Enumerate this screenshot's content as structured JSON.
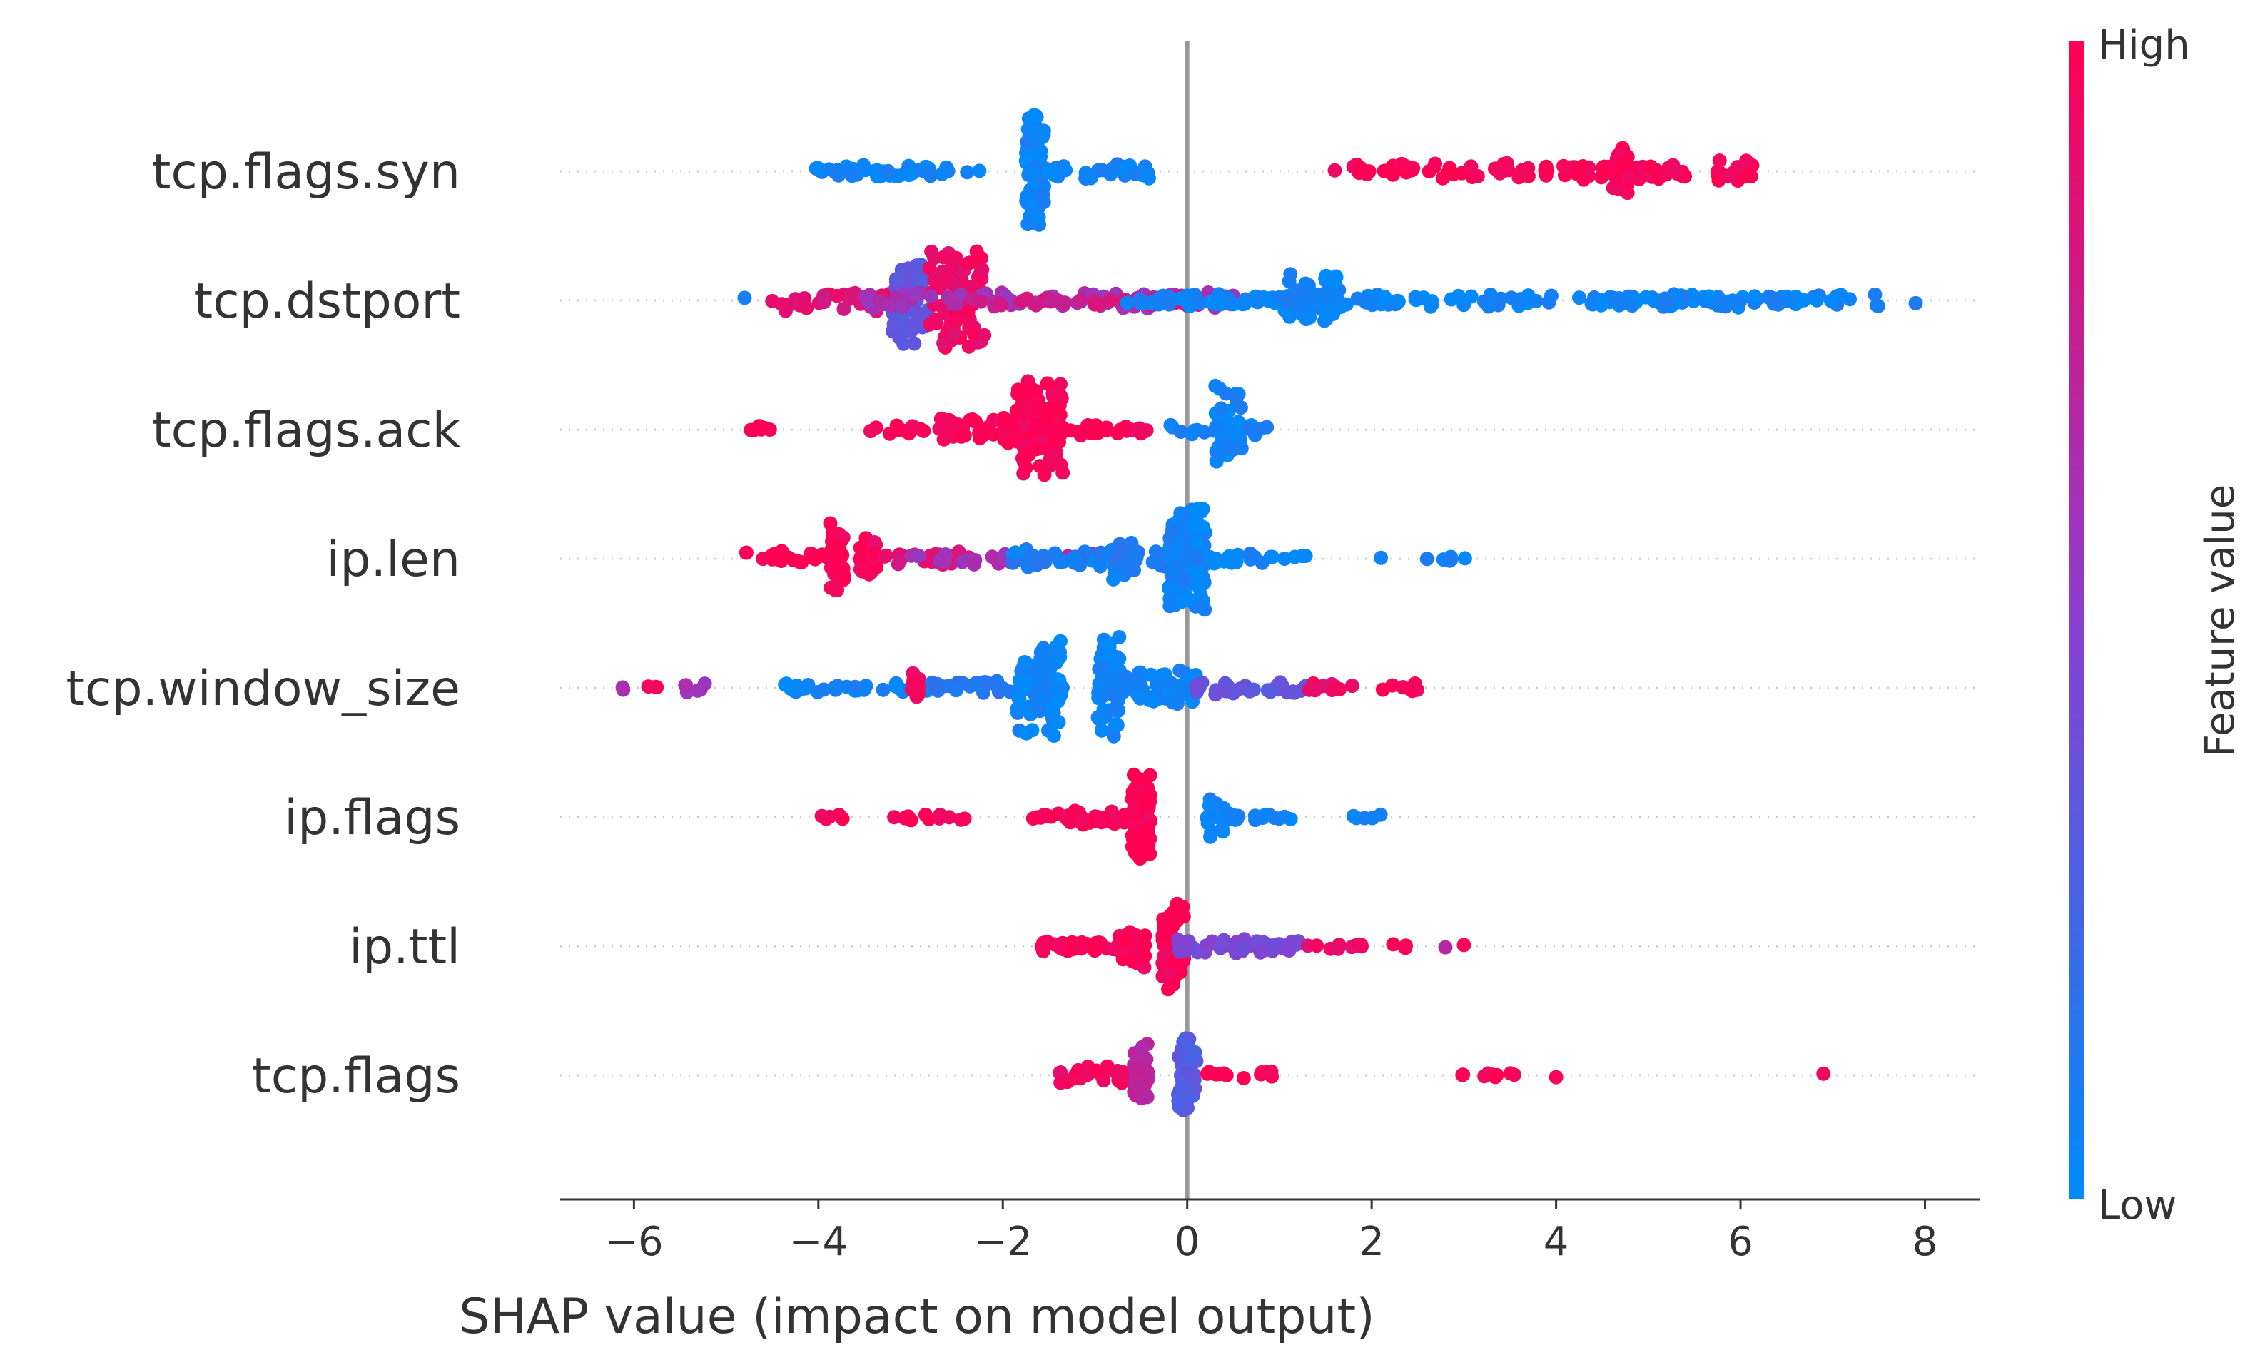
{
  "chart_data": {
    "type": "scatter",
    "subtype": "shap-beeswarm",
    "title": "",
    "xlabel": "SHAP value (impact on model output)",
    "ylabel": "",
    "xlim": [
      -6.8,
      8.6
    ],
    "xticks": [
      -6,
      -4,
      -2,
      0,
      2,
      4,
      6,
      8
    ],
    "xtick_labels": [
      "−6",
      "−4",
      "−2",
      "0",
      "2",
      "4",
      "6",
      "8"
    ],
    "colorbar": {
      "label": "Feature value",
      "high_label": "High",
      "low_label": "Low",
      "low_color": "#008bfb",
      "mid_color": "#8a3fd0",
      "high_color": "#ff0052"
    },
    "features": [
      {
        "name": "tcp.flags.syn",
        "clusters": [
          {
            "x": -3.8,
            "w": 0.05,
            "n": 2,
            "h": 0.08,
            "f": 0.05
          },
          {
            "x": -3.2,
            "w": 1.0,
            "n": 40,
            "h": 0.12,
            "f": 0.05
          },
          {
            "x": -1.65,
            "w": 0.1,
            "n": 90,
            "h": 0.95,
            "f": 0.05
          },
          {
            "x": -1.1,
            "w": 0.7,
            "n": 35,
            "h": 0.12,
            "f": 0.05
          },
          {
            "x": 1.6,
            "w": 0.0,
            "n": 1,
            "h": 0.05,
            "f": 0.98
          },
          {
            "x": 3.4,
            "w": 1.6,
            "n": 60,
            "h": 0.14,
            "f": 0.98
          },
          {
            "x": 4.7,
            "w": 0.08,
            "n": 40,
            "h": 0.45,
            "f": 0.98
          },
          {
            "x": 5.0,
            "w": 0.5,
            "n": 25,
            "h": 0.15,
            "f": 0.98
          },
          {
            "x": 5.95,
            "w": 0.2,
            "n": 20,
            "h": 0.2,
            "f": 0.98
          }
        ]
      },
      {
        "name": "tcp.dstport",
        "clusters": [
          {
            "x": -4.8,
            "w": 0.0,
            "n": 1,
            "h": 0.05,
            "f": 0.15
          },
          {
            "x": -4.5,
            "w": 0.0,
            "n": 1,
            "h": 0.05,
            "f": 0.95
          },
          {
            "x": -3.7,
            "w": 0.7,
            "n": 30,
            "h": 0.2,
            "f": 0.85
          },
          {
            "x": -3.0,
            "w": 0.2,
            "n": 70,
            "h": 0.75,
            "f": 0.35
          },
          {
            "x": -2.5,
            "w": 0.3,
            "n": 80,
            "h": 0.85,
            "f": 0.92
          },
          {
            "x": -1.5,
            "w": 2.0,
            "n": 90,
            "h": 0.14,
            "f": 0.6
          },
          {
            "x": -1.0,
            "w": 1.5,
            "n": 40,
            "h": 0.1,
            "f": 0.8
          },
          {
            "x": 0.8,
            "w": 1.6,
            "n": 80,
            "h": 0.12,
            "f": 0.05
          },
          {
            "x": 1.35,
            "w": 0.3,
            "n": 60,
            "h": 0.45,
            "f": 0.05
          },
          {
            "x": 2.8,
            "w": 2.6,
            "n": 90,
            "h": 0.12,
            "f": 0.05
          },
          {
            "x": 6.3,
            "w": 1.2,
            "n": 60,
            "h": 0.12,
            "f": 0.05
          },
          {
            "x": 7.9,
            "w": 0.0,
            "n": 1,
            "h": 0.05,
            "f": 0.05
          }
        ]
      },
      {
        "name": "tcp.flags.ack",
        "clusters": [
          {
            "x": -4.6,
            "w": 0.15,
            "n": 6,
            "h": 0.08,
            "f": 0.98
          },
          {
            "x": -3.4,
            "w": 0.05,
            "n": 2,
            "h": 0.05,
            "f": 0.98
          },
          {
            "x": -2.9,
            "w": 0.4,
            "n": 12,
            "h": 0.1,
            "f": 0.98
          },
          {
            "x": -2.1,
            "w": 0.6,
            "n": 60,
            "h": 0.25,
            "f": 0.98
          },
          {
            "x": -1.6,
            "w": 0.25,
            "n": 110,
            "h": 0.85,
            "f": 0.98
          },
          {
            "x": -0.9,
            "w": 0.5,
            "n": 30,
            "h": 0.1,
            "f": 0.98
          },
          {
            "x": 0.15,
            "w": 0.4,
            "n": 10,
            "h": 0.08,
            "f": 0.05
          },
          {
            "x": 0.45,
            "w": 0.15,
            "n": 45,
            "h": 0.7,
            "f": 0.05
          },
          {
            "x": 0.75,
            "w": 0.15,
            "n": 6,
            "h": 0.1,
            "f": 0.05
          }
        ]
      },
      {
        "name": "ip.len",
        "clusters": [
          {
            "x": -4.3,
            "w": 0.5,
            "n": 20,
            "h": 0.12,
            "f": 0.98
          },
          {
            "x": -3.8,
            "w": 0.08,
            "n": 40,
            "h": 0.6,
            "f": 0.98
          },
          {
            "x": -3.45,
            "w": 0.1,
            "n": 30,
            "h": 0.45,
            "f": 0.95
          },
          {
            "x": -2.8,
            "w": 0.5,
            "n": 25,
            "h": 0.12,
            "f": 0.85
          },
          {
            "x": -2.0,
            "w": 1.0,
            "n": 30,
            "h": 0.1,
            "f": 0.6
          },
          {
            "x": -0.9,
            "w": 1.0,
            "n": 60,
            "h": 0.15,
            "f": 0.1
          },
          {
            "x": -0.7,
            "w": 0.15,
            "n": 30,
            "h": 0.35,
            "f": 0.1
          },
          {
            "x": 0.0,
            "w": 0.2,
            "n": 120,
            "h": 0.85,
            "f": 0.05
          },
          {
            "x": 0.7,
            "w": 0.6,
            "n": 25,
            "h": 0.1,
            "f": 0.05
          },
          {
            "x": 2.1,
            "w": 0.0,
            "n": 1,
            "h": 0.05,
            "f": 0.05
          },
          {
            "x": 2.6,
            "w": 0.0,
            "n": 1,
            "h": 0.05,
            "f": 0.05
          },
          {
            "x": 2.9,
            "w": 0.2,
            "n": 6,
            "h": 0.06,
            "f": 0.05
          }
        ]
      },
      {
        "name": "tcp.window_size",
        "clusters": [
          {
            "x": -6.1,
            "w": 0.05,
            "n": 2,
            "h": 0.05,
            "f": 0.6
          },
          {
            "x": -5.85,
            "w": 0.1,
            "n": 3,
            "h": 0.05,
            "f": 0.98
          },
          {
            "x": -5.35,
            "w": 0.15,
            "n": 6,
            "h": 0.08,
            "f": 0.6
          },
          {
            "x": -3.6,
            "w": 0.8,
            "n": 30,
            "h": 0.1,
            "f": 0.05
          },
          {
            "x": -2.95,
            "w": 0.05,
            "n": 12,
            "h": 0.4,
            "f": 0.95
          },
          {
            "x": -2.2,
            "w": 0.6,
            "n": 30,
            "h": 0.14,
            "f": 0.15
          },
          {
            "x": -1.6,
            "w": 0.25,
            "n": 90,
            "h": 0.8,
            "f": 0.05
          },
          {
            "x": -0.85,
            "w": 0.12,
            "n": 70,
            "h": 0.85,
            "f": 0.05
          },
          {
            "x": -0.3,
            "w": 0.4,
            "n": 60,
            "h": 0.35,
            "f": 0.05
          },
          {
            "x": 0.7,
            "w": 0.6,
            "n": 30,
            "h": 0.12,
            "f": 0.35
          },
          {
            "x": 1.5,
            "w": 0.3,
            "n": 12,
            "h": 0.08,
            "f": 0.9
          },
          {
            "x": 2.3,
            "w": 0.2,
            "n": 8,
            "h": 0.08,
            "f": 0.98
          }
        ]
      },
      {
        "name": "ip.flags",
        "clusters": [
          {
            "x": -3.8,
            "w": 0.2,
            "n": 6,
            "h": 0.06,
            "f": 0.98
          },
          {
            "x": -3.0,
            "w": 0.2,
            "n": 6,
            "h": 0.06,
            "f": 0.98
          },
          {
            "x": -2.55,
            "w": 0.15,
            "n": 5,
            "h": 0.06,
            "f": 0.98
          },
          {
            "x": -1.5,
            "w": 0.2,
            "n": 10,
            "h": 0.08,
            "f": 0.98
          },
          {
            "x": -0.9,
            "w": 0.4,
            "n": 40,
            "h": 0.15,
            "f": 0.98
          },
          {
            "x": -0.5,
            "w": 0.1,
            "n": 80,
            "h": 0.75,
            "f": 0.98
          },
          {
            "x": 0.3,
            "w": 0.1,
            "n": 25,
            "h": 0.35,
            "f": 0.05
          },
          {
            "x": 0.8,
            "w": 0.4,
            "n": 20,
            "h": 0.08,
            "f": 0.05
          },
          {
            "x": 1.95,
            "w": 0.15,
            "n": 5,
            "h": 0.05,
            "f": 0.05
          }
        ]
      },
      {
        "name": "ip.ttl",
        "clusters": [
          {
            "x": -1.2,
            "w": 0.5,
            "n": 40,
            "h": 0.1,
            "f": 0.98
          },
          {
            "x": -0.6,
            "w": 0.15,
            "n": 40,
            "h": 0.35,
            "f": 0.98
          },
          {
            "x": -0.15,
            "w": 0.12,
            "n": 60,
            "h": 0.75,
            "f": 0.98
          },
          {
            "x": 0.6,
            "w": 0.7,
            "n": 70,
            "h": 0.12,
            "f": 0.45
          },
          {
            "x": 1.6,
            "w": 0.3,
            "n": 10,
            "h": 0.06,
            "f": 0.9
          },
          {
            "x": 2.35,
            "w": 0.15,
            "n": 3,
            "h": 0.05,
            "f": 0.98
          },
          {
            "x": 2.8,
            "w": 0.0,
            "n": 1,
            "h": 0.05,
            "f": 0.7
          },
          {
            "x": 3.0,
            "w": 0.0,
            "n": 1,
            "h": 0.05,
            "f": 0.95
          }
        ]
      },
      {
        "name": "tcp.flags",
        "clusters": [
          {
            "x": -1.0,
            "w": 0.4,
            "n": 30,
            "h": 0.15,
            "f": 0.95
          },
          {
            "x": -0.5,
            "w": 0.08,
            "n": 40,
            "h": 0.6,
            "f": 0.7
          },
          {
            "x": 0.0,
            "w": 0.1,
            "n": 60,
            "h": 0.75,
            "f": 0.3
          },
          {
            "x": 0.6,
            "w": 0.4,
            "n": 12,
            "h": 0.08,
            "f": 0.98
          },
          {
            "x": 3.3,
            "w": 0.4,
            "n": 10,
            "h": 0.06,
            "f": 0.98
          },
          {
            "x": 4.0,
            "w": 0.0,
            "n": 1,
            "h": 0.05,
            "f": 0.98
          },
          {
            "x": 6.9,
            "w": 0.0,
            "n": 1,
            "h": 0.05,
            "f": 0.98
          }
        ]
      }
    ]
  }
}
